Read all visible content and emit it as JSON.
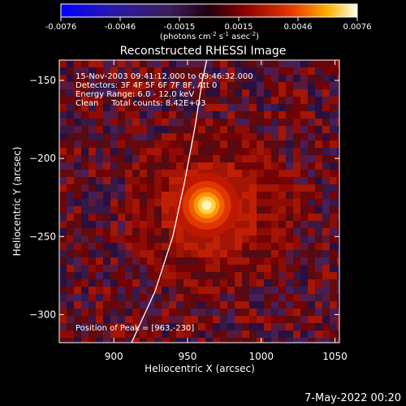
{
  "colorbar": {
    "ticks": [
      "-0.0076",
      "-0.0046",
      "-0.0015",
      "0.0015",
      "0.0046",
      "0.0076"
    ],
    "unit_label": "(photons cm",
    "unit_exp1": "-2",
    "unit_s": " s",
    "unit_exp2": "-1",
    "unit_asec": " asec",
    "unit_exp3": "-2",
    "unit_close": ")"
  },
  "chart_data": {
    "type": "heatmap",
    "title": "Reconstructed RHESSI Image",
    "xlabel": "Heliocentric X (arcsec)",
    "ylabel": "Heliocentric Y (arcsec)",
    "xlim": [
      863,
      1053
    ],
    "ylim": [
      -318,
      -137
    ],
    "xticks": [
      900,
      950,
      1000,
      1050
    ],
    "yticks": [
      -150,
      -200,
      -250,
      -300
    ],
    "clim": [
      -0.0076,
      0.0076
    ],
    "peak": {
      "x": 963,
      "y": -230
    },
    "limb_curve": [
      [
        912,
        -318
      ],
      [
        928,
        -285
      ],
      [
        940,
        -250
      ],
      [
        948,
        -215
      ],
      [
        955,
        -180
      ],
      [
        960,
        -150
      ],
      [
        963,
        -137
      ]
    ],
    "annotations": [
      "15-Nov-2003 09:41:12.000 to 09:46:32.000",
      "Detectors: 3F 4F 5F 6F 7F 8F, Att 0",
      "Energy Range: 6.0 - 12.0 keV",
      "Clean     Total counts: 8.42E+03",
      "Position of Peak = [963,-230]"
    ]
  },
  "footer": {
    "timestamp": "7-May-2022 00:20"
  }
}
